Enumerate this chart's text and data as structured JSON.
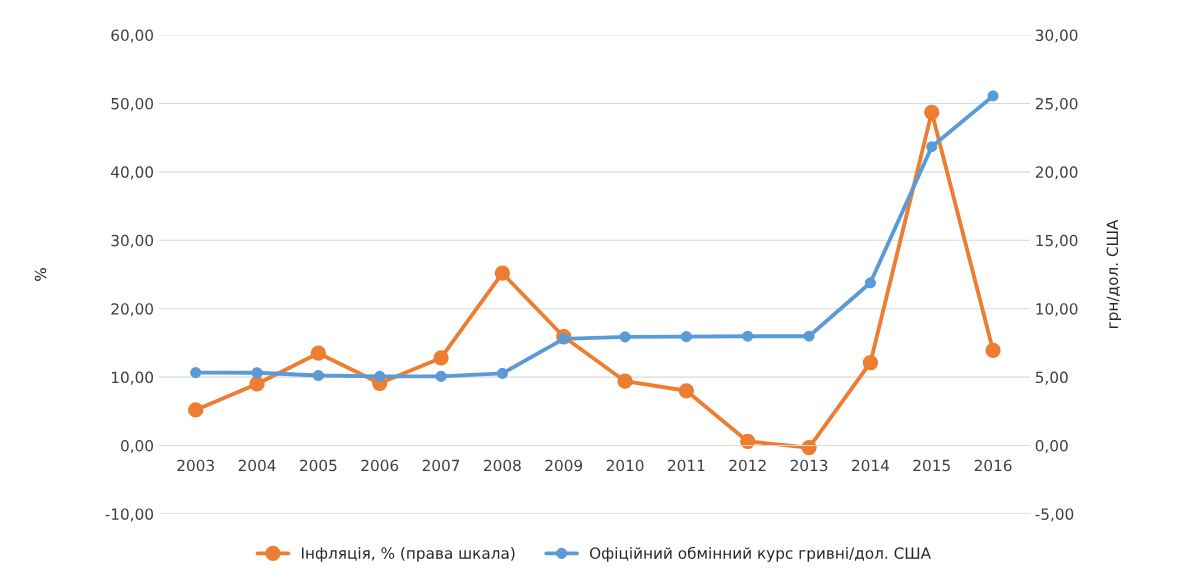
{
  "chart_data": {
    "type": "line",
    "categories": [
      "2003",
      "2004",
      "2005",
      "2006",
      "2007",
      "2008",
      "2009",
      "2010",
      "2011",
      "2012",
      "2013",
      "2014",
      "2015",
      "2016"
    ],
    "series": [
      {
        "name": "Інфляція, % (права шкала)",
        "color": "#ed7d31",
        "values": [
          5.2,
          9.0,
          13.5,
          9.1,
          12.8,
          25.2,
          15.9,
          9.4,
          8.0,
          0.6,
          -0.3,
          12.1,
          48.7,
          13.9
        ]
      },
      {
        "name": "Офіційний обмінний курс гривні/дол. США",
        "color": "#5b9bd5",
        "axis": "y2",
        "values": [
          5.33,
          5.32,
          5.12,
          5.05,
          5.05,
          5.27,
          7.79,
          7.94,
          7.96,
          7.99,
          7.99,
          11.89,
          21.84,
          25.55
        ]
      }
    ],
    "ylabel": "%",
    "y2label": "грн/дол. США",
    "ylim": [
      -10,
      60
    ],
    "yticks": [
      {
        "value": -10,
        "label": "-10,00"
      },
      {
        "value": 0,
        "label": "0,00"
      },
      {
        "value": 10,
        "label": "10,00"
      },
      {
        "value": 20,
        "label": "20,00"
      },
      {
        "value": 30,
        "label": "30,00"
      },
      {
        "value": 40,
        "label": "40,00"
      },
      {
        "value": 50,
        "label": "50,00"
      },
      {
        "value": 60,
        "label": "60,00"
      }
    ],
    "y2lim": [
      -5,
      30
    ],
    "y2ticks": [
      {
        "value": -5,
        "label": "-5,00"
      },
      {
        "value": 0,
        "label": "0,00"
      },
      {
        "value": 5,
        "label": "5,00"
      },
      {
        "value": 10,
        "label": "10,00"
      },
      {
        "value": 15,
        "label": "15,00"
      },
      {
        "value": 20,
        "label": "20,00"
      },
      {
        "value": 25,
        "label": "25,00"
      },
      {
        "value": 30,
        "label": "30,00"
      }
    ],
    "grid": "y",
    "legend": "bottom",
    "marker": "circle",
    "line_style": "solid"
  }
}
